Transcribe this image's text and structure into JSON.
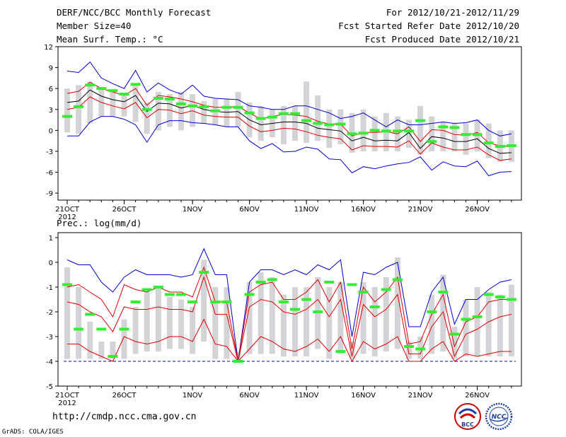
{
  "header": {
    "title": "DERF/NCC/BCC Monthly Forecast",
    "member_size": "Member Size=40",
    "variable": "Mean Surf. Temp.: °C",
    "period": "For 2012/10/21-2012/11/29",
    "fcst_started": "Fcst Started Refer Date 2012/10/20",
    "fcst_produced": "Fcst Produced Date 2012/10/21"
  },
  "footer": {
    "url": "http://cmdp.ncc.cma.gov.cn",
    "grads": "GrADS: COLA/IGES",
    "logo_bcc": "BCC",
    "logo_ncc": "NCC"
  },
  "colors": {
    "ensemble_bar": "#d4d4d8",
    "max_min": "#0000cc",
    "percentile": "#e00000",
    "median": "#000000",
    "forecast_mark": "#33ee33",
    "baseline": "#0000cc"
  },
  "chart_data": [
    {
      "type": "line",
      "title": "Mean Surf. Temp.: °C",
      "ylim": [
        -10,
        12
      ],
      "yticks": [
        "12",
        "9",
        "6",
        "3",
        "0",
        "-3",
        "-6",
        "-9"
      ],
      "ytick_values": [
        12,
        9,
        6,
        3,
        0,
        -3,
        -6,
        -9
      ],
      "xtick_labels": [
        "21OCT",
        "26OCT",
        "1NOV",
        "6NOV",
        "11NOV",
        "16NOV",
        "21NOV",
        "26NOV"
      ],
      "xtick_days": [
        1,
        6,
        12,
        17,
        22,
        27,
        32,
        37
      ],
      "year_label": "2012",
      "x_days": [
        1,
        2,
        3,
        4,
        5,
        6,
        7,
        8,
        9,
        10,
        11,
        12,
        13,
        14,
        15,
        16,
        17,
        18,
        19,
        20,
        21,
        22,
        23,
        24,
        25,
        26,
        27,
        28,
        29,
        30,
        31,
        32,
        33,
        34,
        35,
        36,
        37,
        38,
        39,
        40
      ],
      "series": [
        {
          "name": "max",
          "values": [
            8.5,
            8.3,
            9.8,
            7.5,
            6.7,
            6.0,
            8.6,
            5.5,
            6.8,
            5.8,
            5.2,
            6.5,
            4.9,
            4.6,
            4.5,
            4.4,
            3.5,
            3.3,
            3.0,
            3.0,
            3.5,
            3.5,
            3.0,
            2.5,
            1.7,
            2.0,
            2.5,
            1.5,
            0.5,
            1.5,
            0.8,
            0.8,
            1.0,
            1.2,
            1.0,
            1.1,
            1.5,
            0.0,
            -0.8,
            -0.5
          ]
        },
        {
          "name": "p90",
          "values": [
            5.3,
            5.6,
            6.9,
            6.0,
            5.5,
            5.0,
            6.0,
            3.6,
            5.0,
            4.8,
            4.5,
            4.1,
            3.6,
            3.3,
            3.3,
            3.4,
            2.5,
            1.6,
            2.0,
            2.3,
            2.2,
            2.0,
            1.3,
            0.9,
            0.9,
            -0.8,
            -0.3,
            -0.3,
            -0.2,
            -0.5,
            0.5,
            -1.6,
            0.1,
            0.0,
            -0.6,
            -0.7,
            -0.3,
            -1.8,
            -2.2,
            -2.3
          ]
        },
        {
          "name": "median",
          "values": [
            4.0,
            4.2,
            5.8,
            4.9,
            4.4,
            4.1,
            5.0,
            2.7,
            3.9,
            3.8,
            3.2,
            3.6,
            3.0,
            2.7,
            2.6,
            2.7,
            1.5,
            0.8,
            1.0,
            1.2,
            1.2,
            1.0,
            0.3,
            0.1,
            -0.1,
            -1.5,
            -1.0,
            -1.5,
            -1.4,
            -1.5,
            -0.3,
            -2.6,
            -0.9,
            -1.1,
            -1.6,
            -1.6,
            -1.2,
            -2.6,
            -3.3,
            -3.2
          ]
        },
        {
          "name": "p10",
          "values": [
            3.0,
            3.3,
            4.8,
            4.0,
            3.5,
            3.1,
            4.0,
            1.8,
            3.0,
            2.9,
            2.4,
            2.8,
            2.2,
            2.0,
            1.9,
            1.9,
            0.6,
            -0.2,
            0.0,
            0.3,
            0.2,
            -0.2,
            -0.7,
            -1.0,
            -1.2,
            -2.8,
            -2.2,
            -2.3,
            -2.3,
            -2.4,
            -1.5,
            -3.4,
            -1.8,
            -2.4,
            -2.8,
            -2.8,
            -2.4,
            -3.5,
            -4.3,
            -4.1
          ]
        },
        {
          "name": "min",
          "values": [
            -0.8,
            -0.8,
            1.2,
            2.0,
            2.0,
            1.6,
            0.8,
            -1.7,
            0.8,
            1.4,
            1.4,
            1.1,
            1.0,
            0.8,
            0.5,
            0.5,
            -1.5,
            -2.6,
            -1.9,
            -3.1,
            -3.0,
            -2.4,
            -2.7,
            -4.1,
            -4.2,
            -6.1,
            -5.2,
            -5.5,
            -5.1,
            -4.8,
            -4.6,
            -3.8,
            -5.7,
            -4.5,
            -5.1,
            -5.2,
            -4.4,
            -6.5,
            -6.0,
            -5.9
          ]
        }
      ],
      "bars": {
        "low": [
          -0.3,
          -0.5,
          1.0,
          2.0,
          2.0,
          2.0,
          1.2,
          -0.5,
          0.0,
          0.5,
          0.0,
          0.5,
          1.0,
          0.8,
          0.5,
          0.5,
          -1.0,
          -1.5,
          -1.0,
          -2.0,
          -1.5,
          -1.8,
          -1.5,
          -2.5,
          -2.0,
          -3.2,
          -3.0,
          -3.0,
          -3.0,
          -3.0,
          -2.5,
          -3.5,
          -3.0,
          -3.0,
          -3.0,
          -3.5,
          -3.0,
          -4.0,
          -4.5,
          -4.5
        ],
        "high": [
          6.0,
          6.5,
          7.0,
          6.2,
          5.7,
          5.0,
          6.5,
          4.0,
          5.5,
          5.2,
          5.5,
          5.2,
          4.2,
          4.5,
          4.5,
          5.5,
          4.0,
          3.5,
          3.0,
          3.5,
          3.5,
          7.0,
          5.0,
          3.0,
          3.0,
          2.5,
          3.0,
          2.0,
          2.5,
          2.0,
          1.5,
          3.5,
          2.0,
          1.2,
          1.0,
          1.0,
          1.5,
          1.0,
          0.0,
          0.0
        ]
      },
      "forecast": [
        2.0,
        3.4,
        6.5,
        6.0,
        5.7,
        5.2,
        6.6,
        3.0,
        4.6,
        4.5,
        3.8,
        3.5,
        3.4,
        2.8,
        3.3,
        3.3,
        2.5,
        1.7,
        1.9,
        2.4,
        2.4,
        1.4,
        1.0,
        0.8,
        0.9,
        -0.5,
        -0.4,
        0.0,
        -0.1,
        -0.1,
        -0.1,
        1.4,
        -1.6,
        0.5,
        0.4,
        -0.6,
        -0.6,
        -1.8,
        -2.3,
        -2.2
      ]
    },
    {
      "type": "line",
      "title": "Prec.: log(mm/d)",
      "ylim": [
        -5,
        1.2
      ],
      "yticks": [
        "1",
        "0",
        "-1",
        "-2",
        "-3",
        "-4",
        "-5"
      ],
      "ytick_values": [
        1,
        0,
        -1,
        -2,
        -3,
        -4,
        -5
      ],
      "xtick_labels": [
        "21OCT",
        "26OCT",
        "1NOV",
        "6NOV",
        "11NOV",
        "16NOV",
        "21NOV",
        "26NOV"
      ],
      "xtick_days": [
        1,
        6,
        12,
        17,
        22,
        27,
        32,
        37
      ],
      "year_label": "2012",
      "baseline": -4,
      "x_days": [
        1,
        2,
        3,
        4,
        5,
        6,
        7,
        8,
        9,
        10,
        11,
        12,
        13,
        14,
        15,
        16,
        17,
        18,
        19,
        20,
        21,
        22,
        23,
        24,
        25,
        26,
        27,
        28,
        29,
        30,
        31,
        32,
        33,
        34,
        35,
        36,
        37,
        38,
        39,
        40
      ],
      "series": [
        {
          "name": "max",
          "values": [
            0.1,
            -0.1,
            -0.1,
            -0.8,
            -1.2,
            -0.6,
            -0.3,
            -0.5,
            -0.5,
            -0.5,
            -0.6,
            -0.5,
            0.55,
            -0.5,
            -0.5,
            -4.0,
            -0.8,
            -0.3,
            -0.3,
            -0.5,
            -0.3,
            -0.5,
            -0.1,
            -0.3,
            0.1,
            -3.0,
            -0.4,
            -0.5,
            -0.2,
            0.0,
            -2.6,
            -2.6,
            -1.2,
            -0.6,
            -2.5,
            -1.5,
            -1.5,
            -1.1,
            -0.8,
            -0.7
          ]
        },
        {
          "name": "p90",
          "values": [
            -1.0,
            -0.9,
            -1.2,
            -1.5,
            -2.2,
            -0.9,
            -1.1,
            -1.2,
            -1.0,
            -1.2,
            -1.2,
            -1.4,
            -0.2,
            -1.6,
            -1.6,
            -4.0,
            -1.2,
            -0.9,
            -0.8,
            -1.5,
            -1.5,
            -1.2,
            -0.7,
            -1.6,
            -0.8,
            -3.5,
            -1.0,
            -1.6,
            -1.2,
            -0.6,
            -3.3,
            -3.2,
            -2.1,
            -1.3,
            -3.4,
            -2.4,
            -2.2,
            -1.6,
            -1.5,
            -1.5
          ]
        },
        {
          "name": "p75",
          "values": [
            -1.6,
            -1.7,
            -2.0,
            -2.2,
            -2.8,
            -1.8,
            -1.9,
            -1.9,
            -1.8,
            -1.9,
            -1.9,
            -2.0,
            -0.6,
            -2.1,
            -2.1,
            -4.0,
            -1.8,
            -1.5,
            -1.6,
            -2.0,
            -2.1,
            -1.9,
            -1.5,
            -2.2,
            -1.5,
            -3.8,
            -1.7,
            -2.2,
            -1.9,
            -1.3,
            -3.7,
            -3.7,
            -2.6,
            -2.0,
            -3.8,
            -2.9,
            -2.7,
            -2.4,
            -2.2,
            -2.1
          ]
        },
        {
          "name": "p50",
          "values": [
            -3.3,
            -3.3,
            -3.6,
            -3.8,
            -4.0,
            -3.0,
            -3.2,
            -3.3,
            -3.2,
            -3.0,
            -3.0,
            -3.2,
            -2.3,
            -3.3,
            -3.4,
            -4.0,
            -3.5,
            -3.0,
            -3.2,
            -3.5,
            -3.6,
            -3.4,
            -3.1,
            -3.6,
            -3.0,
            -4.0,
            -3.2,
            -3.5,
            -3.3,
            -3.0,
            -4.0,
            -4.0,
            -3.5,
            -3.2,
            -4.0,
            -3.7,
            -3.8,
            -3.7,
            -3.6,
            -3.6
          ]
        }
      ],
      "bars": {
        "low": [
          -3.9,
          -3.9,
          -3.9,
          -3.9,
          -3.9,
          -3.9,
          -3.7,
          -3.6,
          -3.6,
          -3.5,
          -3.5,
          -3.7,
          -3.2,
          -3.9,
          -3.9,
          -3.9,
          -3.7,
          -3.7,
          -3.7,
          -3.8,
          -3.8,
          -3.8,
          -3.5,
          -3.9,
          -3.7,
          -3.9,
          -3.7,
          -3.8,
          -3.6,
          -3.5,
          -3.9,
          -3.9,
          -3.7,
          -3.6,
          -3.9,
          -3.8,
          -3.8,
          -3.8,
          -3.8,
          -3.8
        ],
        "high": [
          -0.2,
          -1.0,
          -2.4,
          -3.2,
          -3.2,
          -2.3,
          -1.8,
          -1.2,
          -1.0,
          -1.4,
          -1.5,
          -1.8,
          0.1,
          -1.0,
          -1.0,
          -3.6,
          -0.8,
          -0.4,
          -0.6,
          -1.3,
          -1.0,
          -1.0,
          -0.6,
          -1.0,
          -0.8,
          -3.2,
          -0.8,
          -1.0,
          -0.6,
          0.2,
          -3.2,
          -3.0,
          -1.3,
          -0.5,
          -2.6,
          -1.5,
          -1.0,
          -1.2,
          -1.3,
          -0.9
        ]
      },
      "forecast": [
        -0.9,
        -2.7,
        -2.1,
        -2.7,
        -3.8,
        -2.7,
        -1.6,
        -1.1,
        -1.0,
        -1.3,
        -1.3,
        -1.6,
        -0.4,
        -1.6,
        -1.6,
        -4.0,
        -1.3,
        -0.8,
        -0.7,
        -1.6,
        -1.9,
        -1.5,
        -2.0,
        -0.8,
        -3.6,
        -0.9,
        -1.2,
        -1.8,
        -1.1,
        -0.7,
        -3.4,
        -3.5,
        -2.0,
        -1.2,
        -2.9,
        -2.3,
        -2.2,
        -1.3,
        -1.4,
        -1.5
      ]
    }
  ]
}
